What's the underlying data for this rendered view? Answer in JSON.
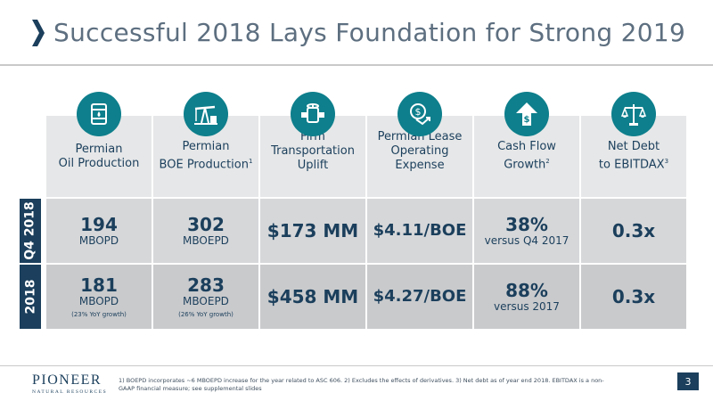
{
  "header": {
    "title": "Successful 2018 Lays Foundation for Strong 2019"
  },
  "columns": [
    {
      "icon": "oil-barrel-icon",
      "label_line1": "Permian",
      "label_line2": "Oil Production"
    },
    {
      "icon": "pumpjack-icon",
      "label_line1": "Permian",
      "label_line2": "BOE Production",
      "sup": "1"
    },
    {
      "icon": "pipeline-icon",
      "label_line1": "Firm",
      "label_line2": "Transportation",
      "label_line3": "Uplift"
    },
    {
      "icon": "dollar-down-icon",
      "label_line1": "Permian Lease",
      "label_line2": "Operating",
      "label_line3": "Expense"
    },
    {
      "icon": "dollar-up-arrow-icon",
      "label_line1": "Cash Flow",
      "label_line2": "Growth",
      "sup": "2"
    },
    {
      "icon": "scales-icon",
      "label_line1": "Net Debt",
      "label_line2": "to EBITDAX",
      "sup": "3"
    }
  ],
  "rows": [
    {
      "label": "Q4 2018",
      "cells": [
        {
          "value": "194",
          "unit": "MBOPD"
        },
        {
          "value": "302",
          "unit": "MBOEPD"
        },
        {
          "value": "$173 MM"
        },
        {
          "value": "$4.11/BOE"
        },
        {
          "value": "38%",
          "unit": "versus Q4 2017"
        },
        {
          "value": "0.3x"
        }
      ]
    },
    {
      "label": "2018",
      "cells": [
        {
          "value": "181",
          "unit": "MBOPD",
          "note": "(23% YoY growth)"
        },
        {
          "value": "283",
          "unit": "MBOEPD",
          "note": "(26% YoY growth)"
        },
        {
          "value": "$458 MM"
        },
        {
          "value": "$4.27/BOE"
        },
        {
          "value": "88%",
          "unit": "versus 2017"
        },
        {
          "value": "0.3x"
        }
      ]
    }
  ],
  "footer": {
    "logo_main": "PIONEER",
    "logo_sub": "NATURAL RESOURCES",
    "footnote": "1) BOEPD incorporates ~6 MBOEPD increase for the year related to ASC 606.  2) Excludes the effects of derivatives.  3) Net debt as of year end 2018.  EBITDAX is a non-GAAP financial measure; see supplemental slides",
    "page_number": "3"
  },
  "colors": {
    "navy": "#1b3f5c",
    "teal": "#0e7f8c",
    "title_gray": "#5d6f80"
  }
}
